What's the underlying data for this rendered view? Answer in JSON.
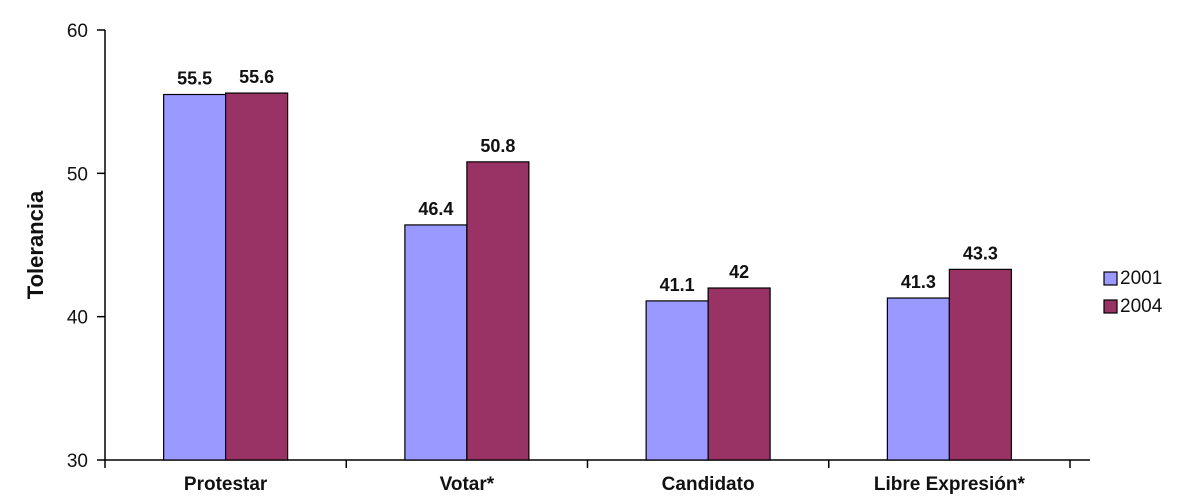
{
  "chart_data": {
    "type": "bar",
    "title": "",
    "xlabel": "",
    "ylabel": "Tolerancia",
    "ylim": [
      30,
      60
    ],
    "yticks": [
      "30",
      "40",
      "50",
      "60"
    ],
    "categories": [
      "Protestar",
      "Votar*",
      "Candidato",
      "Libre Expresión*"
    ],
    "series": [
      {
        "name": "2001",
        "color": "#9999ff",
        "values": [
          55.5,
          46.4,
          41.1,
          41.3
        ],
        "labels": [
          "55.5",
          "46.4",
          "41.1",
          "41.3"
        ]
      },
      {
        "name": "2004",
        "color": "#993366",
        "values": [
          55.6,
          50.8,
          42,
          43.3
        ],
        "labels": [
          "55.6",
          "50.8",
          "42",
          "43.3"
        ]
      }
    ],
    "grid": false,
    "legend": "right"
  }
}
